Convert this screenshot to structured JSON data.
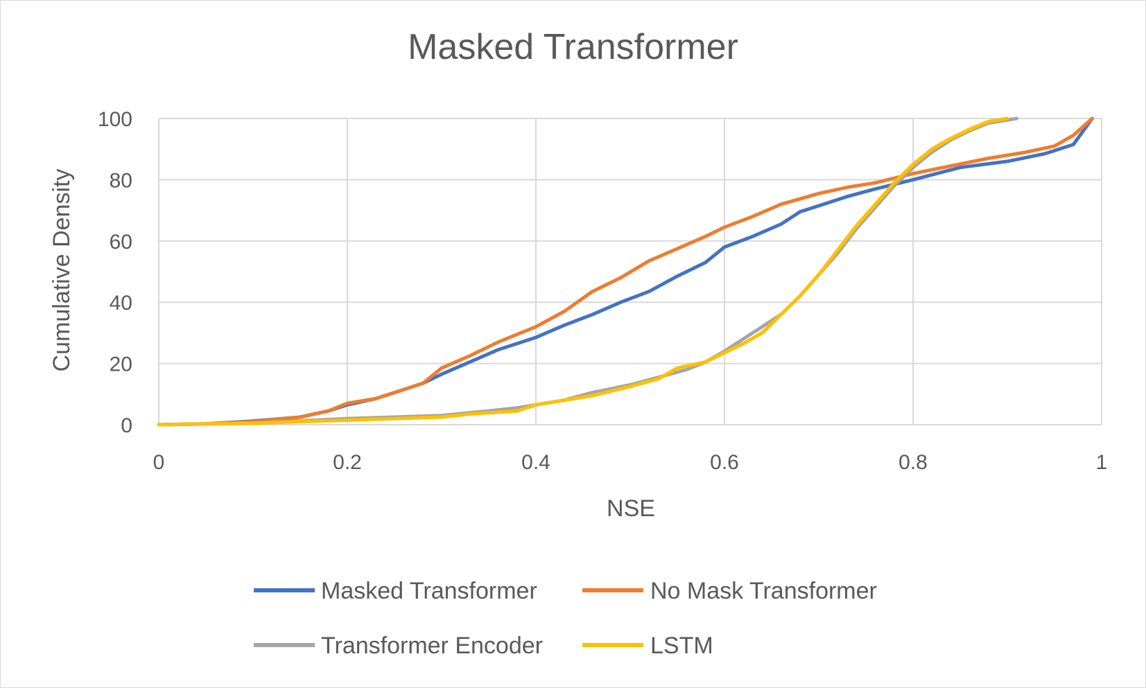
{
  "chart_data": {
    "type": "line",
    "title": "Masked Transformer",
    "xlabel": "NSE",
    "ylabel": "Cumulative Density",
    "xlim": [
      0,
      1
    ],
    "ylim": [
      0,
      100
    ],
    "xticks": [
      0,
      0.2,
      0.4,
      0.6,
      0.8,
      1
    ],
    "xtick_labels": [
      "0",
      "0.2",
      "0.4",
      "0.6",
      "0.8",
      "1"
    ],
    "yticks": [
      0,
      20,
      40,
      60,
      80,
      100
    ],
    "ytick_labels": [
      "0",
      "20",
      "40",
      "60",
      "80",
      "100"
    ],
    "grid": true,
    "legend_position": "bottom",
    "series": [
      {
        "name": "Masked Transformer",
        "color": "#4472c4",
        "points": [
          [
            0,
            0
          ],
          [
            0.05,
            0.3
          ],
          [
            0.1,
            1.2
          ],
          [
            0.15,
            2.5
          ],
          [
            0.18,
            4.5
          ],
          [
            0.2,
            6.5
          ],
          [
            0.23,
            8.5
          ],
          [
            0.25,
            10.5
          ],
          [
            0.28,
            13.5
          ],
          [
            0.3,
            16.5
          ],
          [
            0.33,
            20.5
          ],
          [
            0.36,
            24.5
          ],
          [
            0.4,
            28.5
          ],
          [
            0.43,
            32.5
          ],
          [
            0.46,
            36
          ],
          [
            0.49,
            40
          ],
          [
            0.52,
            43.5
          ],
          [
            0.55,
            48.5
          ],
          [
            0.58,
            53
          ],
          [
            0.6,
            58
          ],
          [
            0.63,
            61.5
          ],
          [
            0.66,
            65.5
          ],
          [
            0.68,
            69.5
          ],
          [
            0.7,
            71.5
          ],
          [
            0.73,
            74.5
          ],
          [
            0.76,
            77
          ],
          [
            0.8,
            80
          ],
          [
            0.85,
            84
          ],
          [
            0.9,
            86
          ],
          [
            0.94,
            88.5
          ],
          [
            0.97,
            91.5
          ],
          [
            0.99,
            100
          ]
        ]
      },
      {
        "name": "No Mask Transformer",
        "color": "#ed7d31",
        "points": [
          [
            0,
            0
          ],
          [
            0.05,
            0.3
          ],
          [
            0.1,
            1
          ],
          [
            0.15,
            2.5
          ],
          [
            0.18,
            4.5
          ],
          [
            0.2,
            7
          ],
          [
            0.23,
            8.5
          ],
          [
            0.25,
            10.5
          ],
          [
            0.28,
            13.5
          ],
          [
            0.3,
            18.5
          ],
          [
            0.33,
            22.5
          ],
          [
            0.36,
            27
          ],
          [
            0.4,
            32
          ],
          [
            0.43,
            37
          ],
          [
            0.46,
            43.5
          ],
          [
            0.49,
            48
          ],
          [
            0.52,
            53.5
          ],
          [
            0.55,
            57.5
          ],
          [
            0.58,
            61.5
          ],
          [
            0.6,
            64.5
          ],
          [
            0.63,
            68
          ],
          [
            0.66,
            72
          ],
          [
            0.7,
            75.5
          ],
          [
            0.73,
            77.5
          ],
          [
            0.76,
            79
          ],
          [
            0.8,
            82
          ],
          [
            0.84,
            84.5
          ],
          [
            0.88,
            87
          ],
          [
            0.92,
            89
          ],
          [
            0.95,
            91
          ],
          [
            0.97,
            94.5
          ],
          [
            0.99,
            100
          ]
        ]
      },
      {
        "name": "Transformer Encoder",
        "color": "#a5a5a5",
        "points": [
          [
            0,
            0
          ],
          [
            0.1,
            0.5
          ],
          [
            0.2,
            2
          ],
          [
            0.3,
            3
          ],
          [
            0.35,
            4.5
          ],
          [
            0.38,
            5.5
          ],
          [
            0.4,
            6.5
          ],
          [
            0.43,
            8
          ],
          [
            0.46,
            10.5
          ],
          [
            0.5,
            13
          ],
          [
            0.53,
            15.5
          ],
          [
            0.56,
            18
          ],
          [
            0.58,
            20.5
          ],
          [
            0.6,
            24
          ],
          [
            0.62,
            28
          ],
          [
            0.64,
            32
          ],
          [
            0.66,
            36
          ],
          [
            0.68,
            42
          ],
          [
            0.7,
            49
          ],
          [
            0.72,
            56
          ],
          [
            0.74,
            64
          ],
          [
            0.76,
            71
          ],
          [
            0.78,
            78
          ],
          [
            0.8,
            84
          ],
          [
            0.82,
            89
          ],
          [
            0.84,
            93
          ],
          [
            0.86,
            96
          ],
          [
            0.88,
            98.5
          ],
          [
            0.91,
            100
          ]
        ]
      },
      {
        "name": "LSTM",
        "color": "#ffc000",
        "points": [
          [
            0,
            0
          ],
          [
            0.1,
            0.5
          ],
          [
            0.2,
            1.5
          ],
          [
            0.3,
            2.5
          ],
          [
            0.33,
            3.5
          ],
          [
            0.38,
            4.5
          ],
          [
            0.4,
            6.5
          ],
          [
            0.43,
            8
          ],
          [
            0.46,
            9.5
          ],
          [
            0.5,
            12.5
          ],
          [
            0.53,
            15
          ],
          [
            0.55,
            18.5
          ],
          [
            0.58,
            20.5
          ],
          [
            0.6,
            23.5
          ],
          [
            0.62,
            26.5
          ],
          [
            0.64,
            30
          ],
          [
            0.66,
            36
          ],
          [
            0.68,
            42
          ],
          [
            0.7,
            49
          ],
          [
            0.72,
            57
          ],
          [
            0.74,
            65
          ],
          [
            0.76,
            72
          ],
          [
            0.78,
            79
          ],
          [
            0.8,
            85
          ],
          [
            0.82,
            90
          ],
          [
            0.84,
            93.5
          ],
          [
            0.86,
            96.5
          ],
          [
            0.88,
            99
          ],
          [
            0.9,
            100
          ]
        ]
      }
    ]
  }
}
